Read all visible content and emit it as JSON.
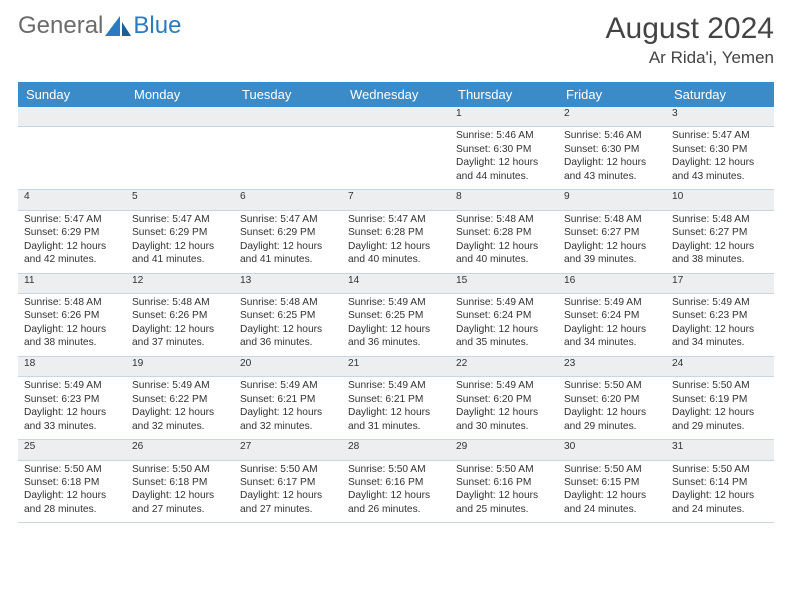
{
  "logo": {
    "text1": "General",
    "text2": "Blue",
    "accent_color": "#2a7bbf"
  },
  "title": "August 2024",
  "location": "Ar Rida'i, Yemen",
  "colors": {
    "header_bg": "#3b8bc9",
    "header_fg": "#ffffff",
    "daynum_bg": "#eceef0",
    "border": "#c8d5e2",
    "text": "#333333",
    "title": "#444444"
  },
  "day_headers": [
    "Sunday",
    "Monday",
    "Tuesday",
    "Wednesday",
    "Thursday",
    "Friday",
    "Saturday"
  ],
  "weeks": [
    [
      {
        "n": "",
        "sunrise": "",
        "sunset": "",
        "daylight": ""
      },
      {
        "n": "",
        "sunrise": "",
        "sunset": "",
        "daylight": ""
      },
      {
        "n": "",
        "sunrise": "",
        "sunset": "",
        "daylight": ""
      },
      {
        "n": "",
        "sunrise": "",
        "sunset": "",
        "daylight": ""
      },
      {
        "n": "1",
        "sunrise": "Sunrise: 5:46 AM",
        "sunset": "Sunset: 6:30 PM",
        "daylight": "Daylight: 12 hours and 44 minutes."
      },
      {
        "n": "2",
        "sunrise": "Sunrise: 5:46 AM",
        "sunset": "Sunset: 6:30 PM",
        "daylight": "Daylight: 12 hours and 43 minutes."
      },
      {
        "n": "3",
        "sunrise": "Sunrise: 5:47 AM",
        "sunset": "Sunset: 6:30 PM",
        "daylight": "Daylight: 12 hours and 43 minutes."
      }
    ],
    [
      {
        "n": "4",
        "sunrise": "Sunrise: 5:47 AM",
        "sunset": "Sunset: 6:29 PM",
        "daylight": "Daylight: 12 hours and 42 minutes."
      },
      {
        "n": "5",
        "sunrise": "Sunrise: 5:47 AM",
        "sunset": "Sunset: 6:29 PM",
        "daylight": "Daylight: 12 hours and 41 minutes."
      },
      {
        "n": "6",
        "sunrise": "Sunrise: 5:47 AM",
        "sunset": "Sunset: 6:29 PM",
        "daylight": "Daylight: 12 hours and 41 minutes."
      },
      {
        "n": "7",
        "sunrise": "Sunrise: 5:47 AM",
        "sunset": "Sunset: 6:28 PM",
        "daylight": "Daylight: 12 hours and 40 minutes."
      },
      {
        "n": "8",
        "sunrise": "Sunrise: 5:48 AM",
        "sunset": "Sunset: 6:28 PM",
        "daylight": "Daylight: 12 hours and 40 minutes."
      },
      {
        "n": "9",
        "sunrise": "Sunrise: 5:48 AM",
        "sunset": "Sunset: 6:27 PM",
        "daylight": "Daylight: 12 hours and 39 minutes."
      },
      {
        "n": "10",
        "sunrise": "Sunrise: 5:48 AM",
        "sunset": "Sunset: 6:27 PM",
        "daylight": "Daylight: 12 hours and 38 minutes."
      }
    ],
    [
      {
        "n": "11",
        "sunrise": "Sunrise: 5:48 AM",
        "sunset": "Sunset: 6:26 PM",
        "daylight": "Daylight: 12 hours and 38 minutes."
      },
      {
        "n": "12",
        "sunrise": "Sunrise: 5:48 AM",
        "sunset": "Sunset: 6:26 PM",
        "daylight": "Daylight: 12 hours and 37 minutes."
      },
      {
        "n": "13",
        "sunrise": "Sunrise: 5:48 AM",
        "sunset": "Sunset: 6:25 PM",
        "daylight": "Daylight: 12 hours and 36 minutes."
      },
      {
        "n": "14",
        "sunrise": "Sunrise: 5:49 AM",
        "sunset": "Sunset: 6:25 PM",
        "daylight": "Daylight: 12 hours and 36 minutes."
      },
      {
        "n": "15",
        "sunrise": "Sunrise: 5:49 AM",
        "sunset": "Sunset: 6:24 PM",
        "daylight": "Daylight: 12 hours and 35 minutes."
      },
      {
        "n": "16",
        "sunrise": "Sunrise: 5:49 AM",
        "sunset": "Sunset: 6:24 PM",
        "daylight": "Daylight: 12 hours and 34 minutes."
      },
      {
        "n": "17",
        "sunrise": "Sunrise: 5:49 AM",
        "sunset": "Sunset: 6:23 PM",
        "daylight": "Daylight: 12 hours and 34 minutes."
      }
    ],
    [
      {
        "n": "18",
        "sunrise": "Sunrise: 5:49 AM",
        "sunset": "Sunset: 6:23 PM",
        "daylight": "Daylight: 12 hours and 33 minutes."
      },
      {
        "n": "19",
        "sunrise": "Sunrise: 5:49 AM",
        "sunset": "Sunset: 6:22 PM",
        "daylight": "Daylight: 12 hours and 32 minutes."
      },
      {
        "n": "20",
        "sunrise": "Sunrise: 5:49 AM",
        "sunset": "Sunset: 6:21 PM",
        "daylight": "Daylight: 12 hours and 32 minutes."
      },
      {
        "n": "21",
        "sunrise": "Sunrise: 5:49 AM",
        "sunset": "Sunset: 6:21 PM",
        "daylight": "Daylight: 12 hours and 31 minutes."
      },
      {
        "n": "22",
        "sunrise": "Sunrise: 5:49 AM",
        "sunset": "Sunset: 6:20 PM",
        "daylight": "Daylight: 12 hours and 30 minutes."
      },
      {
        "n": "23",
        "sunrise": "Sunrise: 5:50 AM",
        "sunset": "Sunset: 6:20 PM",
        "daylight": "Daylight: 12 hours and 29 minutes."
      },
      {
        "n": "24",
        "sunrise": "Sunrise: 5:50 AM",
        "sunset": "Sunset: 6:19 PM",
        "daylight": "Daylight: 12 hours and 29 minutes."
      }
    ],
    [
      {
        "n": "25",
        "sunrise": "Sunrise: 5:50 AM",
        "sunset": "Sunset: 6:18 PM",
        "daylight": "Daylight: 12 hours and 28 minutes."
      },
      {
        "n": "26",
        "sunrise": "Sunrise: 5:50 AM",
        "sunset": "Sunset: 6:18 PM",
        "daylight": "Daylight: 12 hours and 27 minutes."
      },
      {
        "n": "27",
        "sunrise": "Sunrise: 5:50 AM",
        "sunset": "Sunset: 6:17 PM",
        "daylight": "Daylight: 12 hours and 27 minutes."
      },
      {
        "n": "28",
        "sunrise": "Sunrise: 5:50 AM",
        "sunset": "Sunset: 6:16 PM",
        "daylight": "Daylight: 12 hours and 26 minutes."
      },
      {
        "n": "29",
        "sunrise": "Sunrise: 5:50 AM",
        "sunset": "Sunset: 6:16 PM",
        "daylight": "Daylight: 12 hours and 25 minutes."
      },
      {
        "n": "30",
        "sunrise": "Sunrise: 5:50 AM",
        "sunset": "Sunset: 6:15 PM",
        "daylight": "Daylight: 12 hours and 24 minutes."
      },
      {
        "n": "31",
        "sunrise": "Sunrise: 5:50 AM",
        "sunset": "Sunset: 6:14 PM",
        "daylight": "Daylight: 12 hours and 24 minutes."
      }
    ]
  ]
}
